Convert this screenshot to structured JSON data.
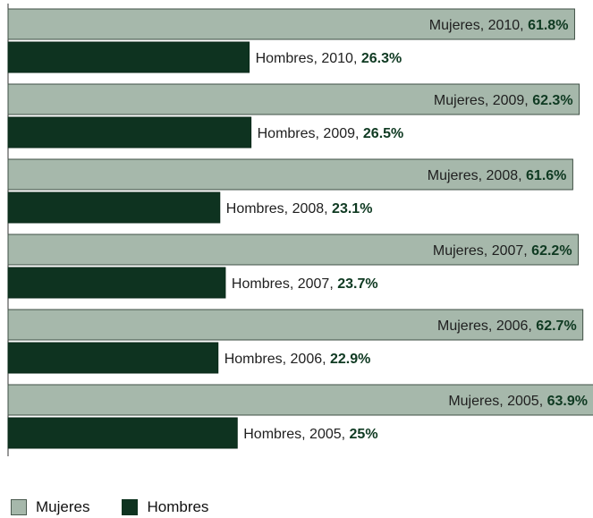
{
  "chart_data": {
    "type": "bar",
    "orientation": "horizontal",
    "xlim": [
      0,
      64
    ],
    "grid": false,
    "legend_position": "bottom-left",
    "title": "",
    "xlabel": "",
    "ylabel": "",
    "categories": [
      "2010",
      "2009",
      "2008",
      "2007",
      "2006",
      "2005"
    ],
    "series": [
      {
        "name": "Mujeres",
        "color": "#a6b8ab",
        "values": [
          61.8,
          62.3,
          61.6,
          62.2,
          62.7,
          63.9
        ]
      },
      {
        "name": "Hombres",
        "color": "#0e3320",
        "values": [
          26.3,
          26.5,
          23.1,
          23.7,
          22.9,
          25
        ]
      }
    ],
    "data_labels": {
      "Mujeres": [
        {
          "text": "Mujeres, 2010, ",
          "value": "61.8%"
        },
        {
          "text": "Mujeres, 2009, ",
          "value": "62.3%"
        },
        {
          "text": "Mujeres, 2008, ",
          "value": "61.6%"
        },
        {
          "text": "Mujeres, 2007, ",
          "value": "62.2%"
        },
        {
          "text": "Mujeres, 2006, ",
          "value": "62.7%"
        },
        {
          "text": "Mujeres, 2005, ",
          "value": "63.9%"
        }
      ],
      "Hombres": [
        {
          "text": "Hombres, 2010, ",
          "value": "26.3%"
        },
        {
          "text": "Hombres, 2009, ",
          "value": "26.5%"
        },
        {
          "text": "Hombres, 2008, ",
          "value": "23.1%"
        },
        {
          "text": "Hombres, 2007, ",
          "value": "23.7%"
        },
        {
          "text": "Hombres, 2006, ",
          "value": "22.9%"
        },
        {
          "text": "Hombres, 2005, ",
          "value": "25%"
        }
      ]
    }
  },
  "legend": {
    "mujeres_label": "Mujeres",
    "hombres_label": "Hombres"
  }
}
